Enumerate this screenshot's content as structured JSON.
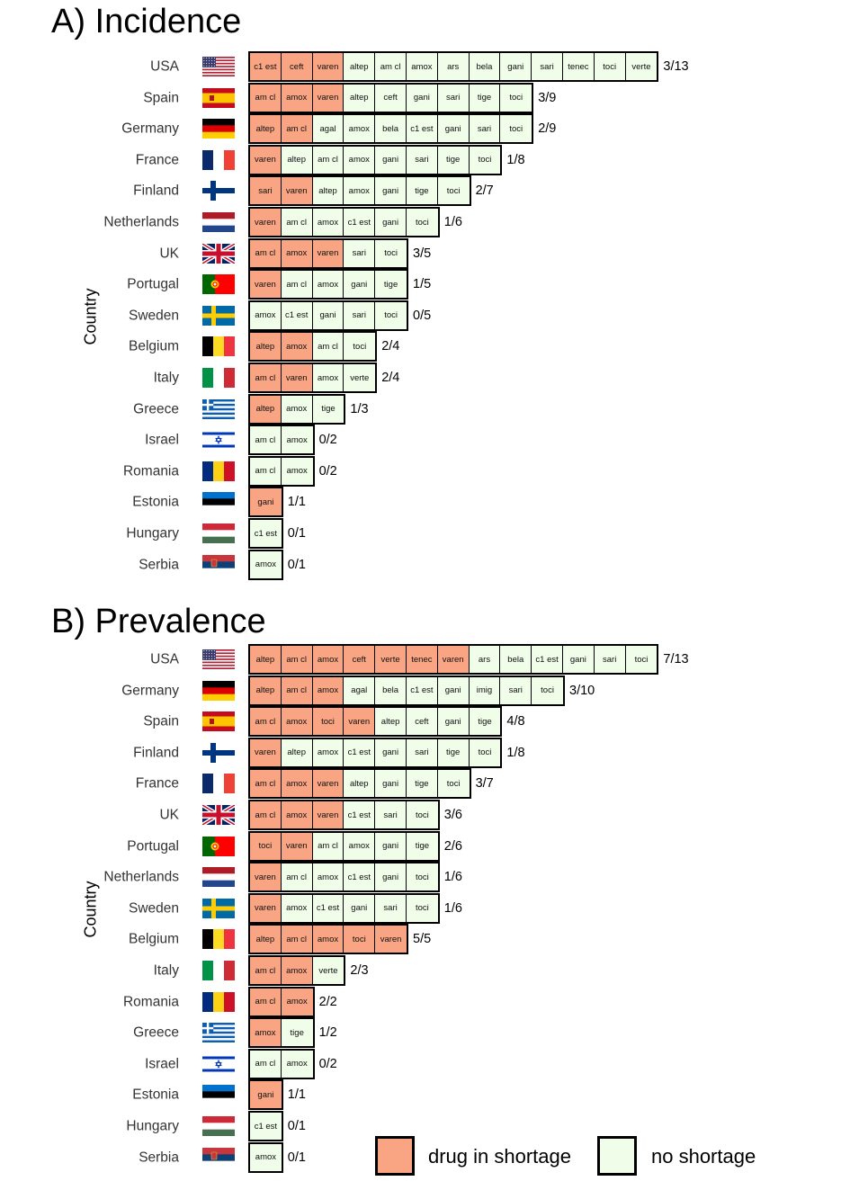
{
  "colors": {
    "shortage": "#f9a584",
    "no_shortage": "#effde9",
    "border": "#000000"
  },
  "legend": {
    "shortage_label": "drug in shortage",
    "no_shortage_label": "no shortage"
  },
  "chart_data": [
    {
      "type": "table",
      "title": "A) Incidence",
      "ylabel": "Country",
      "rows": [
        {
          "country": "USA",
          "flag": "flag-usa",
          "count": "3/13",
          "drugs": [
            [
              "c1 est",
              1
            ],
            [
              "ceft",
              1
            ],
            [
              "varen",
              1
            ],
            [
              "altep",
              0
            ],
            [
              "am cl",
              0
            ],
            [
              "amox",
              0
            ],
            [
              "ars",
              0
            ],
            [
              "bela",
              0
            ],
            [
              "gani",
              0
            ],
            [
              "sari",
              0
            ],
            [
              "tenec",
              0
            ],
            [
              "toci",
              0
            ],
            [
              "verte",
              0
            ]
          ]
        },
        {
          "country": "Spain",
          "flag": "flag-spain",
          "count": "3/9",
          "drugs": [
            [
              "am cl",
              1
            ],
            [
              "amox",
              1
            ],
            [
              "varen",
              1
            ],
            [
              "altep",
              0
            ],
            [
              "ceft",
              0
            ],
            [
              "gani",
              0
            ],
            [
              "sari",
              0
            ],
            [
              "tige",
              0
            ],
            [
              "toci",
              0
            ]
          ]
        },
        {
          "country": "Germany",
          "flag": "flag-germany",
          "count": "2/9",
          "drugs": [
            [
              "altep",
              1
            ],
            [
              "am cl",
              1
            ],
            [
              "agal",
              0
            ],
            [
              "amox",
              0
            ],
            [
              "bela",
              0
            ],
            [
              "c1 est",
              0
            ],
            [
              "gani",
              0
            ],
            [
              "sari",
              0
            ],
            [
              "toci",
              0
            ]
          ]
        },
        {
          "country": "France",
          "flag": "flag-france",
          "count": "1/8",
          "drugs": [
            [
              "varen",
              1
            ],
            [
              "altep",
              0
            ],
            [
              "am cl",
              0
            ],
            [
              "amox",
              0
            ],
            [
              "gani",
              0
            ],
            [
              "sari",
              0
            ],
            [
              "tige",
              0
            ],
            [
              "toci",
              0
            ]
          ]
        },
        {
          "country": "Finland",
          "flag": "flag-finland",
          "count": "2/7",
          "drugs": [
            [
              "sari",
              1
            ],
            [
              "varen",
              1
            ],
            [
              "altep",
              0
            ],
            [
              "amox",
              0
            ],
            [
              "gani",
              0
            ],
            [
              "tige",
              0
            ],
            [
              "toci",
              0
            ]
          ]
        },
        {
          "country": "Netherlands",
          "flag": "flag-netherlands",
          "count": "1/6",
          "drugs": [
            [
              "varen",
              1
            ],
            [
              "am cl",
              0
            ],
            [
              "amox",
              0
            ],
            [
              "c1 est",
              0
            ],
            [
              "gani",
              0
            ],
            [
              "toci",
              0
            ]
          ]
        },
        {
          "country": "UK",
          "flag": "flag-uk",
          "count": "3/5",
          "drugs": [
            [
              "am cl",
              1
            ],
            [
              "amox",
              1
            ],
            [
              "varen",
              1
            ],
            [
              "sari",
              0
            ],
            [
              "toci",
              0
            ]
          ]
        },
        {
          "country": "Portugal",
          "flag": "flag-portugal",
          "count": "1/5",
          "drugs": [
            [
              "varen",
              1
            ],
            [
              "am cl",
              0
            ],
            [
              "amox",
              0
            ],
            [
              "gani",
              0
            ],
            [
              "tige",
              0
            ]
          ]
        },
        {
          "country": "Sweden",
          "flag": "flag-sweden",
          "count": "0/5",
          "drugs": [
            [
              "amox",
              0
            ],
            [
              "c1 est",
              0
            ],
            [
              "gani",
              0
            ],
            [
              "sari",
              0
            ],
            [
              "toci",
              0
            ]
          ]
        },
        {
          "country": "Belgium",
          "flag": "flag-belgium",
          "count": "2/4",
          "drugs": [
            [
              "altep",
              1
            ],
            [
              "amox",
              1
            ],
            [
              "am cl",
              0
            ],
            [
              "toci",
              0
            ]
          ]
        },
        {
          "country": "Italy",
          "flag": "flag-italy",
          "count": "2/4",
          "drugs": [
            [
              "am cl",
              1
            ],
            [
              "varen",
              1
            ],
            [
              "amox",
              0
            ],
            [
              "verte",
              0
            ]
          ]
        },
        {
          "country": "Greece",
          "flag": "flag-greece",
          "count": "1/3",
          "drugs": [
            [
              "altep",
              1
            ],
            [
              "amox",
              0
            ],
            [
              "tige",
              0
            ]
          ]
        },
        {
          "country": "Israel",
          "flag": "flag-israel",
          "count": "0/2",
          "drugs": [
            [
              "am cl",
              0
            ],
            [
              "amox",
              0
            ]
          ]
        },
        {
          "country": "Romania",
          "flag": "flag-romania",
          "count": "0/2",
          "drugs": [
            [
              "am cl",
              0
            ],
            [
              "amox",
              0
            ]
          ]
        },
        {
          "country": "Estonia",
          "flag": "flag-estonia",
          "count": "1/1",
          "drugs": [
            [
              "gani",
              1
            ]
          ]
        },
        {
          "country": "Hungary",
          "flag": "flag-hungary",
          "count": "0/1",
          "drugs": [
            [
              "c1 est",
              0
            ]
          ]
        },
        {
          "country": "Serbia",
          "flag": "flag-serbia",
          "count": "0/1",
          "drugs": [
            [
              "amox",
              0
            ]
          ]
        }
      ]
    },
    {
      "type": "table",
      "title": "B) Prevalence",
      "ylabel": "Country",
      "rows": [
        {
          "country": "USA",
          "flag": "flag-usa",
          "count": "7/13",
          "drugs": [
            [
              "altep",
              1
            ],
            [
              "am cl",
              1
            ],
            [
              "amox",
              1
            ],
            [
              "ceft",
              1
            ],
            [
              "verte",
              1
            ],
            [
              "tenec",
              1
            ],
            [
              "varen",
              1
            ],
            [
              "ars",
              0
            ],
            [
              "bela",
              0
            ],
            [
              "c1 est",
              0
            ],
            [
              "gani",
              0
            ],
            [
              "sari",
              0
            ],
            [
              "toci",
              0
            ]
          ]
        },
        {
          "country": "Germany",
          "flag": "flag-germany",
          "count": "3/10",
          "drugs": [
            [
              "altep",
              1
            ],
            [
              "am cl",
              1
            ],
            [
              "amox",
              1
            ],
            [
              "agal",
              0
            ],
            [
              "bela",
              0
            ],
            [
              "c1 est",
              0
            ],
            [
              "gani",
              0
            ],
            [
              "imig",
              0
            ],
            [
              "sari",
              0
            ],
            [
              "toci",
              0
            ]
          ]
        },
        {
          "country": "Spain",
          "flag": "flag-spain",
          "count": "4/8",
          "drugs": [
            [
              "am cl",
              1
            ],
            [
              "amox",
              1
            ],
            [
              "toci",
              1
            ],
            [
              "varen",
              1
            ],
            [
              "altep",
              0
            ],
            [
              "ceft",
              0
            ],
            [
              "gani",
              0
            ],
            [
              "tige",
              0
            ]
          ]
        },
        {
          "country": "Finland",
          "flag": "flag-finland",
          "count": "1/8",
          "drugs": [
            [
              "varen",
              1
            ],
            [
              "altep",
              0
            ],
            [
              "amox",
              0
            ],
            [
              "c1 est",
              0
            ],
            [
              "gani",
              0
            ],
            [
              "sari",
              0
            ],
            [
              "tige",
              0
            ],
            [
              "toci",
              0
            ]
          ]
        },
        {
          "country": "France",
          "flag": "flag-france",
          "count": "3/7",
          "drugs": [
            [
              "am cl",
              1
            ],
            [
              "amox",
              1
            ],
            [
              "varen",
              1
            ],
            [
              "altep",
              0
            ],
            [
              "gani",
              0
            ],
            [
              "tige",
              0
            ],
            [
              "toci",
              0
            ]
          ]
        },
        {
          "country": "UK",
          "flag": "flag-uk",
          "count": "3/6",
          "drugs": [
            [
              "am cl",
              1
            ],
            [
              "amox",
              1
            ],
            [
              "varen",
              1
            ],
            [
              "c1 est",
              0
            ],
            [
              "sari",
              0
            ],
            [
              "toci",
              0
            ]
          ]
        },
        {
          "country": "Portugal",
          "flag": "flag-portugal",
          "count": "2/6",
          "drugs": [
            [
              "toci",
              1
            ],
            [
              "varen",
              1
            ],
            [
              "am cl",
              0
            ],
            [
              "amox",
              0
            ],
            [
              "gani",
              0
            ],
            [
              "tige",
              0
            ]
          ]
        },
        {
          "country": "Netherlands",
          "flag": "flag-netherlands",
          "count": "1/6",
          "drugs": [
            [
              "varen",
              1
            ],
            [
              "am cl",
              0
            ],
            [
              "amox",
              0
            ],
            [
              "c1 est",
              0
            ],
            [
              "gani",
              0
            ],
            [
              "toci",
              0
            ]
          ]
        },
        {
          "country": "Sweden",
          "flag": "flag-sweden",
          "count": "1/6",
          "drugs": [
            [
              "varen",
              1
            ],
            [
              "amox",
              0
            ],
            [
              "c1 est",
              0
            ],
            [
              "gani",
              0
            ],
            [
              "sari",
              0
            ],
            [
              "toci",
              0
            ]
          ]
        },
        {
          "country": "Belgium",
          "flag": "flag-belgium",
          "count": "5/5",
          "drugs": [
            [
              "altep",
              1
            ],
            [
              "am cl",
              1
            ],
            [
              "amox",
              1
            ],
            [
              "toci",
              1
            ],
            [
              "varen",
              1
            ]
          ]
        },
        {
          "country": "Italy",
          "flag": "flag-italy",
          "count": "2/3",
          "drugs": [
            [
              "am cl",
              1
            ],
            [
              "amox",
              1
            ],
            [
              "verte",
              0
            ]
          ]
        },
        {
          "country": "Romania",
          "flag": "flag-romania",
          "count": "2/2",
          "drugs": [
            [
              "am cl",
              1
            ],
            [
              "amox",
              1
            ]
          ]
        },
        {
          "country": "Greece",
          "flag": "flag-greece",
          "count": "1/2",
          "drugs": [
            [
              "amox",
              1
            ],
            [
              "tige",
              0
            ]
          ]
        },
        {
          "country": "Israel",
          "flag": "flag-israel",
          "count": "0/2",
          "drugs": [
            [
              "am cl",
              0
            ],
            [
              "amox",
              0
            ]
          ]
        },
        {
          "country": "Estonia",
          "flag": "flag-estonia",
          "count": "1/1",
          "drugs": [
            [
              "gani",
              1
            ]
          ]
        },
        {
          "country": "Hungary",
          "flag": "flag-hungary",
          "count": "0/1",
          "drugs": [
            [
              "c1 est",
              0
            ]
          ]
        },
        {
          "country": "Serbia",
          "flag": "flag-serbia",
          "count": "0/1",
          "drugs": [
            [
              "amox",
              0
            ]
          ]
        }
      ]
    }
  ]
}
